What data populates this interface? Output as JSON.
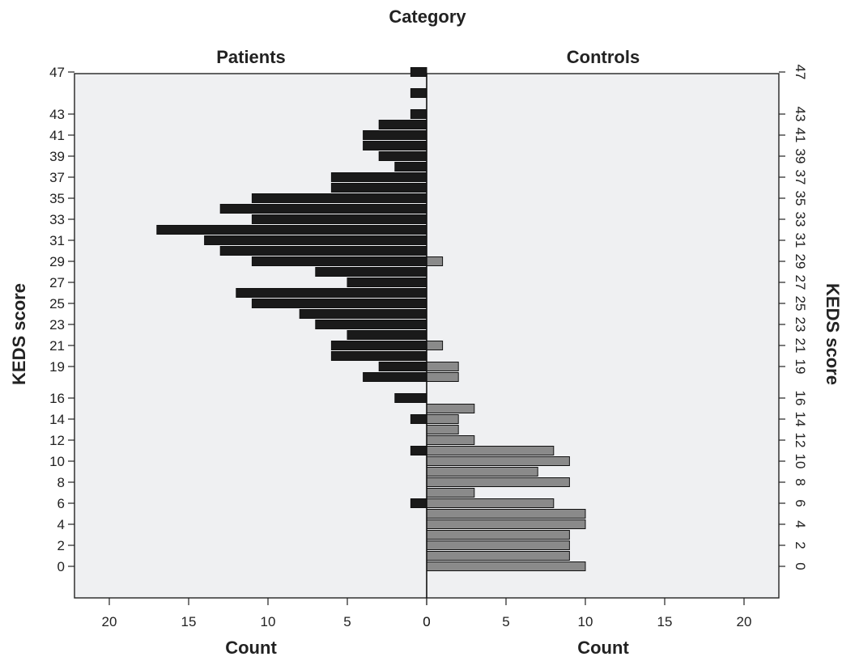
{
  "chart_data": {
    "type": "bar",
    "orientation": "horizontal",
    "layout": "back-to-back",
    "title": "Category",
    "ylabel": "KEDS score",
    "y_tick_labels": [
      "0",
      "2",
      "4",
      "6",
      "8",
      "10",
      "12",
      "14",
      "16",
      "19",
      "21",
      "23",
      "25",
      "27",
      "29",
      "31",
      "33",
      "35",
      "37",
      "39",
      "41",
      "43",
      "47"
    ],
    "categories": [
      "0",
      "1",
      "2",
      "3",
      "4",
      "5",
      "6",
      "7",
      "8",
      "9",
      "10",
      "11",
      "12",
      "13",
      "14",
      "15",
      "16",
      "18",
      "19",
      "20",
      "21",
      "22",
      "23",
      "24",
      "25",
      "26",
      "27",
      "28",
      "29",
      "30",
      "31",
      "32",
      "33",
      "34",
      "35",
      "36",
      "37",
      "38",
      "39",
      "40",
      "41",
      "42",
      "43",
      "45",
      "47"
    ],
    "panels": [
      {
        "name": "Patients",
        "xlabel": "Count",
        "xlim": [
          0,
          22
        ],
        "x_tick_labels": [
          "20",
          "15",
          "10",
          "5",
          "0"
        ],
        "x_ticks": [
          20,
          15,
          10,
          5,
          0
        ],
        "color": "#1a1a1a",
        "values": [
          0,
          0,
          0,
          0,
          0,
          0,
          1,
          0,
          0,
          0,
          0,
          1,
          0,
          0,
          1,
          0,
          2,
          4,
          3,
          6,
          6,
          5,
          7,
          8,
          11,
          12,
          5,
          7,
          11,
          13,
          14,
          17,
          11,
          13,
          11,
          6,
          6,
          2,
          3,
          4,
          4,
          3,
          1,
          1,
          1
        ]
      },
      {
        "name": "Controls",
        "xlabel": "Count",
        "xlim": [
          0,
          22
        ],
        "x_tick_labels": [
          "0",
          "5",
          "10",
          "15",
          "20"
        ],
        "x_ticks": [
          0,
          5,
          10,
          15,
          20
        ],
        "color": "#8a8a8a",
        "values": [
          10,
          9,
          9,
          9,
          10,
          10,
          8,
          3,
          9,
          7,
          9,
          8,
          3,
          2,
          2,
          3,
          0,
          2,
          2,
          0,
          1,
          0,
          0,
          0,
          0,
          0,
          0,
          0,
          1,
          0,
          0,
          0,
          0,
          0,
          0,
          0,
          0,
          0,
          0,
          0,
          0,
          0,
          0,
          0,
          0
        ]
      }
    ]
  }
}
